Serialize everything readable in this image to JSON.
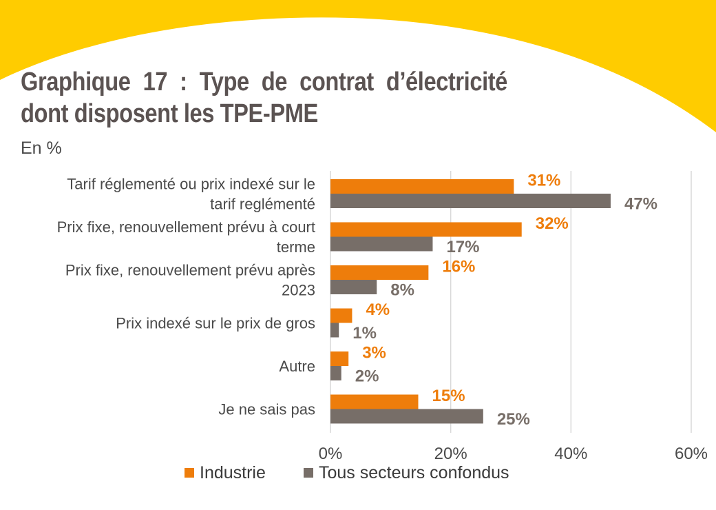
{
  "colors": {
    "banner": "#ffcc00",
    "industrie": "#ee7d0b",
    "tous": "#776e68",
    "grid": "#d9d9d9"
  },
  "title": "Graphique 17 : Type de contrat d’électricité dont disposent les TPE-PME",
  "subtitle": "En %",
  "chart_data": {
    "type": "bar",
    "orientation": "horizontal",
    "categories": [
      [
        "Tarif réglementé ou prix indexé sur le",
        "tarif reglémenté"
      ],
      [
        "Prix fixe, renouvellement prévu à court",
        "terme"
      ],
      [
        "Prix fixe, renouvellement prévu après",
        "2023"
      ],
      [
        "Prix indexé sur le prix de gros"
      ],
      [
        "Autre"
      ],
      [
        "Je ne sais pas"
      ]
    ],
    "series": [
      {
        "name": "Industrie",
        "color": "#ee7d0b",
        "values": [
          30.5,
          31.8,
          16.3,
          3.6,
          3.0,
          14.6
        ],
        "labels": [
          "31%",
          "32%",
          "16%",
          "4%",
          "3%",
          "15%"
        ]
      },
      {
        "name": "Tous secteurs confondus",
        "color": "#776e68",
        "values": [
          46.6,
          17.0,
          7.7,
          1.4,
          1.8,
          25.4
        ],
        "labels": [
          "47%",
          "17%",
          "8%",
          "1%",
          "2%",
          "25%"
        ]
      }
    ],
    "xlim": [
      0,
      60
    ],
    "xticks": [
      "0%",
      "20%",
      "40%",
      "60%"
    ],
    "grid": true,
    "legend": "bottom"
  }
}
